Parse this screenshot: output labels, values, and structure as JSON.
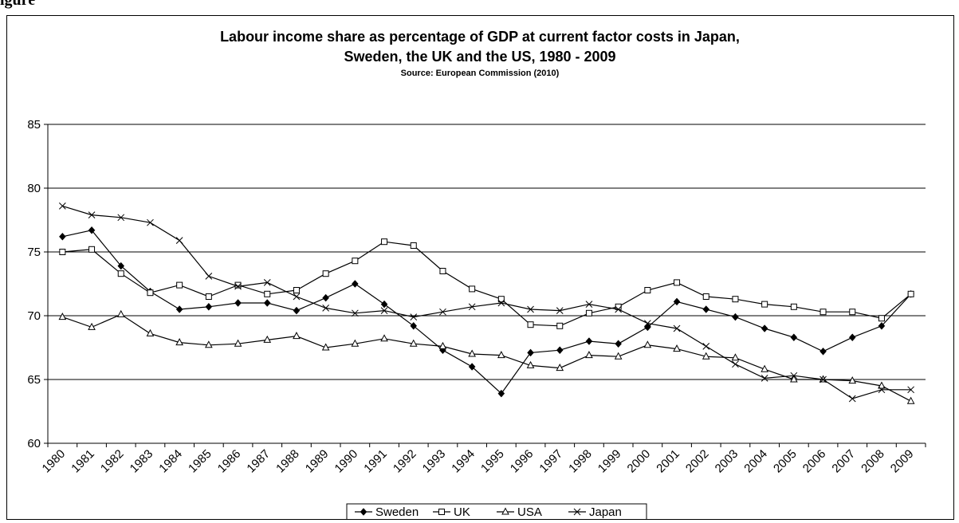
{
  "figure_label": "igure",
  "chart_data": {
    "type": "line",
    "title": "Labour income share as percentage of GDP at current factor costs in Japan,",
    "title_line2": "Sweden, the UK and the US, 1980 - 2009",
    "subtitle": "Source: European Commission (2010)",
    "xlabel": "",
    "ylabel": "",
    "ylim": [
      60,
      85
    ],
    "yticks": [
      60,
      65,
      70,
      75,
      80,
      85
    ],
    "grid": "horizontal",
    "legend_position": "bottom",
    "x": [
      "1980",
      "1981",
      "1982",
      "1983",
      "1984",
      "1985",
      "1986",
      "1987",
      "1988",
      "1989",
      "1990",
      "1991",
      "1992",
      "1993",
      "1994",
      "1995",
      "1996",
      "1997",
      "1998",
      "1999",
      "2000",
      "2001",
      "2002",
      "2003",
      "2004",
      "2005",
      "2006",
      "2007",
      "2008",
      "2009"
    ],
    "series": [
      {
        "name": "Sweden",
        "marker": "diamond",
        "values": [
          76.2,
          76.7,
          73.9,
          71.9,
          70.5,
          70.7,
          71.0,
          71.0,
          70.4,
          71.4,
          72.5,
          70.9,
          69.2,
          67.3,
          66.0,
          63.9,
          67.1,
          67.3,
          68.0,
          67.8,
          69.1,
          71.1,
          70.5,
          69.9,
          69.0,
          68.3,
          67.2,
          68.3,
          69.2,
          71.7
        ]
      },
      {
        "name": "UK",
        "marker": "square",
        "values": [
          75.0,
          75.2,
          73.3,
          71.8,
          72.4,
          71.5,
          72.4,
          71.7,
          72.0,
          73.3,
          74.3,
          75.8,
          75.5,
          73.5,
          72.1,
          71.3,
          69.3,
          69.2,
          70.2,
          70.7,
          72.0,
          72.6,
          71.5,
          71.3,
          70.9,
          70.7,
          70.3,
          70.3,
          69.8,
          71.7
        ]
      },
      {
        "name": "USA",
        "marker": "triangle",
        "values": [
          69.9,
          69.1,
          70.1,
          68.6,
          67.9,
          67.7,
          67.8,
          68.1,
          68.4,
          67.5,
          67.8,
          68.2,
          67.8,
          67.6,
          67.0,
          66.9,
          66.1,
          65.9,
          66.9,
          66.8,
          67.7,
          67.4,
          66.8,
          66.7,
          65.8,
          65.0,
          65.0,
          64.9,
          64.5,
          63.3
        ]
      },
      {
        "name": "Japan",
        "marker": "x",
        "values": [
          78.6,
          77.9,
          77.7,
          77.3,
          75.9,
          73.1,
          72.3,
          72.6,
          71.5,
          70.6,
          70.2,
          70.4,
          69.9,
          70.3,
          70.7,
          71.0,
          70.5,
          70.4,
          70.9,
          70.5,
          69.4,
          69.0,
          67.6,
          66.2,
          65.1,
          65.3,
          65.0,
          63.5,
          64.2,
          64.2
        ]
      }
    ],
    "colors": {
      "line": "#000000",
      "grid": "#000000",
      "background": "#ffffff"
    }
  }
}
